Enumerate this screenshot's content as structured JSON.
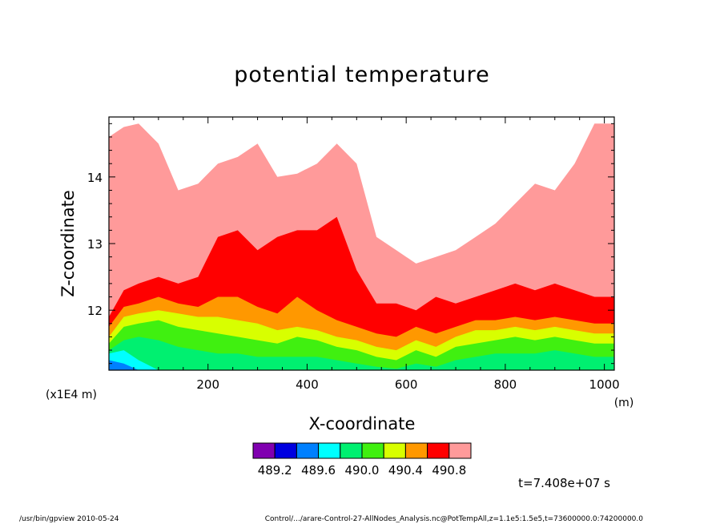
{
  "chart_data": {
    "type": "heatmap",
    "title": "potential temperature",
    "xlabel": "X-coordinate",
    "ylabel": "Z-coordinate",
    "x_unit": "(m)",
    "y_unit": "(x1E4 m)",
    "xlim": [
      0,
      1020
    ],
    "ylim": [
      11.1,
      14.9
    ],
    "x_ticks": [
      200,
      400,
      600,
      800,
      1000
    ],
    "y_ticks": [
      12,
      13,
      14
    ],
    "time_label": "t=7.408e+07 s",
    "color_levels": [
      {
        "color": "#8000b0"
      },
      {
        "color": "#0000e0"
      },
      {
        "color": "#0080ff"
      },
      {
        "color": "#00ffff"
      },
      {
        "color": "#00f070"
      },
      {
        "color": "#40f010"
      },
      {
        "color": "#d8ff00"
      },
      {
        "color": "#ff9800"
      },
      {
        "color": "#ff0000"
      },
      {
        "color": "#ff9a9a"
      }
    ],
    "colorbar_labels": [
      "489.2",
      "489.6",
      "490.0",
      "490.4",
      "490.8"
    ],
    "contour_profiles": {
      "x": [
        0,
        30,
        60,
        100,
        140,
        180,
        220,
        260,
        300,
        340,
        380,
        420,
        460,
        500,
        540,
        580,
        620,
        660,
        700,
        740,
        780,
        820,
        860,
        900,
        940,
        980,
        1020
      ],
      "pink_top": [
        14.6,
        14.75,
        14.8,
        14.5,
        13.8,
        13.9,
        14.2,
        14.3,
        14.5,
        14.0,
        14.05,
        14.2,
        14.5,
        14.2,
        13.1,
        12.9,
        12.7,
        12.8,
        12.9,
        13.1,
        13.3,
        13.6,
        13.9,
        13.8,
        14.2,
        14.8,
        14.8
      ],
      "red_top": [
        11.9,
        12.3,
        12.4,
        12.5,
        12.4,
        12.5,
        13.1,
        13.2,
        12.9,
        13.1,
        13.2,
        13.2,
        13.4,
        12.6,
        12.1,
        12.1,
        12.0,
        12.2,
        12.1,
        12.2,
        12.3,
        12.4,
        12.3,
        12.4,
        12.3,
        12.2,
        12.2
      ],
      "orange_top": [
        11.75,
        12.05,
        12.1,
        12.2,
        12.1,
        12.05,
        12.2,
        12.2,
        12.05,
        11.95,
        12.2,
        12.0,
        11.85,
        11.75,
        11.65,
        11.6,
        11.75,
        11.65,
        11.75,
        11.85,
        11.85,
        11.9,
        11.85,
        11.9,
        11.85,
        11.8,
        11.8
      ],
      "yellow_top": [
        11.6,
        11.9,
        11.95,
        12.0,
        11.95,
        11.9,
        11.9,
        11.85,
        11.8,
        11.7,
        11.75,
        11.7,
        11.6,
        11.55,
        11.45,
        11.4,
        11.55,
        11.45,
        11.6,
        11.7,
        11.7,
        11.75,
        11.7,
        11.75,
        11.7,
        11.65,
        11.65
      ],
      "green_top": [
        11.5,
        11.75,
        11.8,
        11.85,
        11.75,
        11.7,
        11.65,
        11.6,
        11.55,
        11.5,
        11.6,
        11.55,
        11.45,
        11.4,
        11.3,
        11.25,
        11.4,
        11.3,
        11.45,
        11.5,
        11.55,
        11.6,
        11.55,
        11.6,
        11.55,
        11.5,
        11.5
      ],
      "spring_top": [
        11.4,
        11.55,
        11.6,
        11.55,
        11.45,
        11.4,
        11.35,
        11.35,
        11.3,
        11.3,
        11.3,
        11.3,
        11.25,
        11.2,
        11.15,
        11.12,
        11.2,
        11.15,
        11.25,
        11.3,
        11.35,
        11.35,
        11.35,
        11.4,
        11.35,
        11.3,
        11.3
      ],
      "cyan_top": [
        11.35,
        11.4,
        11.25,
        11.1,
        11.1,
        11.1,
        11.1,
        11.1,
        11.1,
        11.1,
        11.1,
        11.1,
        11.1,
        11.1,
        11.1,
        11.1,
        11.1,
        11.1,
        11.1,
        11.1,
        11.1,
        11.1,
        11.1,
        11.1,
        11.1,
        11.1,
        11.1
      ],
      "blue_top": [
        11.25,
        11.2,
        11.1,
        11.1,
        11.1,
        11.1,
        11.1,
        11.1,
        11.1,
        11.1,
        11.1,
        11.1,
        11.1,
        11.1,
        11.1,
        11.1,
        11.1,
        11.1,
        11.1,
        11.1,
        11.1,
        11.1,
        11.1,
        11.1,
        11.1,
        11.1,
        11.1
      ]
    }
  },
  "footer": {
    "left": "/usr/bin/gpview  2010-05-24",
    "right": "Control/.../arare-Control-27-AllNodes_Analysis.nc@PotTempAll,z=1.1e5:1.5e5,t=73600000.0:74200000.0"
  }
}
